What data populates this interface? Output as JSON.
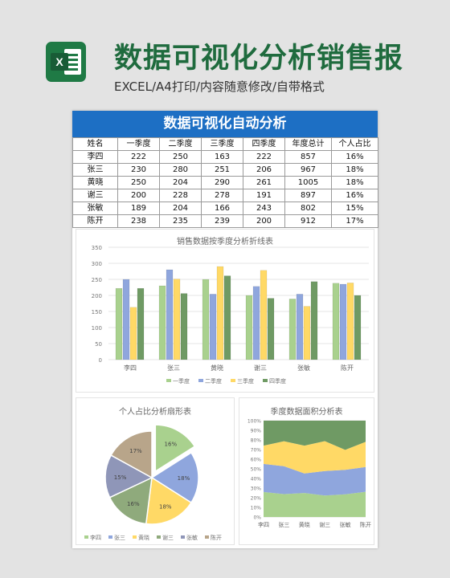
{
  "header": {
    "logo_letter": "X",
    "title": "数据可视化分析销售报",
    "subtitle": "EXCEL/A4打印/内容随意修改/自带格式"
  },
  "sheet": {
    "title": "数据可视化自动分析",
    "columns": [
      "姓名",
      "一季度",
      "二季度",
      "三季度",
      "四季度",
      "年度总计",
      "个人占比"
    ],
    "rows": [
      [
        "李四",
        "222",
        "250",
        "163",
        "222",
        "857",
        "16%"
      ],
      [
        "张三",
        "230",
        "280",
        "251",
        "206",
        "967",
        "18%"
      ],
      [
        "黄晓",
        "250",
        "204",
        "290",
        "261",
        "1005",
        "18%"
      ],
      [
        "谢三",
        "200",
        "228",
        "278",
        "191",
        "897",
        "16%"
      ],
      [
        "张敏",
        "189",
        "204",
        "166",
        "243",
        "802",
        "15%"
      ],
      [
        "陈开",
        "238",
        "235",
        "239",
        "200",
        "912",
        "17%"
      ]
    ]
  },
  "colors": {
    "q1": "#a9d18e",
    "q2": "#8fa6dd",
    "q3": "#ffd966",
    "q4": "#6f9a64",
    "p_lisi": "#a9d18e",
    "p_zhangsan": "#8fa6dd",
    "p_huangxiao": "#ffd966",
    "p_xiesan": "#8faa7c",
    "p_zhangmin": "#8f96b8",
    "p_chenkai": "#b8a58a",
    "header_blue": "#1d6fc4",
    "brand_green": "#1f6b3e"
  },
  "chart_data": [
    {
      "type": "bar",
      "title": "销售数据按季度分析折线表",
      "categories": [
        "李四",
        "张三",
        "黄晓",
        "谢三",
        "张敏",
        "陈开"
      ],
      "series": [
        {
          "name": "一季度",
          "values": [
            222,
            230,
            250,
            200,
            189,
            238
          ]
        },
        {
          "name": "二季度",
          "values": [
            250,
            280,
            204,
            228,
            204,
            235
          ]
        },
        {
          "name": "三季度",
          "values": [
            163,
            251,
            290,
            278,
            166,
            239
          ]
        },
        {
          "name": "四季度",
          "values": [
            222,
            206,
            261,
            191,
            243,
            200
          ]
        }
      ],
      "ylim": [
        0,
        350
      ],
      "yticks": [
        "0",
        "50",
        "100",
        "150",
        "200",
        "250",
        "300",
        "350"
      ],
      "grid": true,
      "legend": "bottom"
    },
    {
      "type": "pie",
      "title": "个人占比分析扇形表",
      "labels": [
        "李四",
        "张三",
        "黄晓",
        "谢三",
        "张敏",
        "陈开"
      ],
      "values": [
        16,
        18,
        18,
        16,
        15,
        17
      ],
      "data_labels": [
        "16%",
        "18%",
        "18%",
        "16%",
        "15%",
        "17%"
      ],
      "exploded": "李四",
      "legend": "bottom"
    },
    {
      "type": "area",
      "title": "季度数据面积分析表",
      "categories": [
        "李四",
        "张三",
        "黄晓",
        "谢三",
        "张敏",
        "陈开"
      ],
      "stacking": "percent",
      "series": [
        {
          "name": "一季度",
          "values": [
            222,
            230,
            250,
            200,
            189,
            238
          ]
        },
        {
          "name": "二季度",
          "values": [
            250,
            280,
            204,
            228,
            204,
            235
          ]
        },
        {
          "name": "三季度",
          "values": [
            163,
            251,
            290,
            278,
            166,
            239
          ]
        },
        {
          "name": "四季度",
          "values": [
            222,
            206,
            261,
            191,
            243,
            200
          ]
        }
      ],
      "ylim": [
        0,
        100
      ],
      "yticks": [
        "0%",
        "10%",
        "20%",
        "30%",
        "40%",
        "50%",
        "60%",
        "70%",
        "80%",
        "90%",
        "100%"
      ],
      "grid": true
    }
  ]
}
